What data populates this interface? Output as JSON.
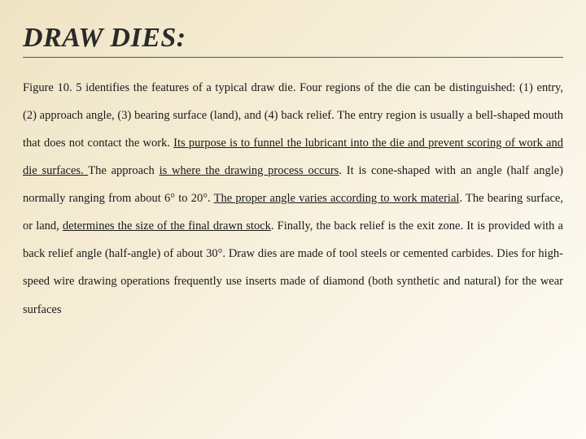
{
  "title": "DRAW DIES:",
  "paragraph": {
    "segments": [
      {
        "text": "Figure 10. 5 identifies the features of a typical draw die. Four regions of the die can be distinguished: (1) entry, (2) approach angle, (3) bearing surface (land), and (4) back relief. The entry region is usually a bell-shaped mouth that does not contact the work. ",
        "underline": false
      },
      {
        "text": "Its purpose is to funnel the lubricant into the die and prevent scoring of work and die surfaces. ",
        "underline": true
      },
      {
        "text": "The approach ",
        "underline": false
      },
      {
        "text": "is where the drawing process occurs",
        "underline": true
      },
      {
        "text": ". It is cone-shaped with an angle (half angle) normally ranging from about 6° to 20°. ",
        "underline": false
      },
      {
        "text": "The proper angle varies according to work material",
        "underline": true
      },
      {
        "text": ". The bearing surface, or land, ",
        "underline": false
      },
      {
        "text": "determines the size of the final drawn stock",
        "underline": true
      },
      {
        "text": ". Finally, the back relief is the exit zone. It is provided with a back relief angle (half-angle) of about 30°. Draw dies are made of tool steels or cemented carbides. Dies for high-speed wire drawing operations frequently use inserts made of diamond (both synthetic and natural) for the wear surfaces",
        "underline": false
      }
    ]
  },
  "style": {
    "background_gradient": [
      "#f0e4c4",
      "#f5edd6",
      "#faf5e8",
      "#fdfbf5"
    ],
    "title_fontsize": 34,
    "title_color": "#2a2a2a",
    "body_fontsize": 14.5,
    "body_color": "#1a1a1a",
    "line_height": 2.35,
    "underline_color": "#1a1a1a",
    "title_rule_color": "#555555"
  }
}
